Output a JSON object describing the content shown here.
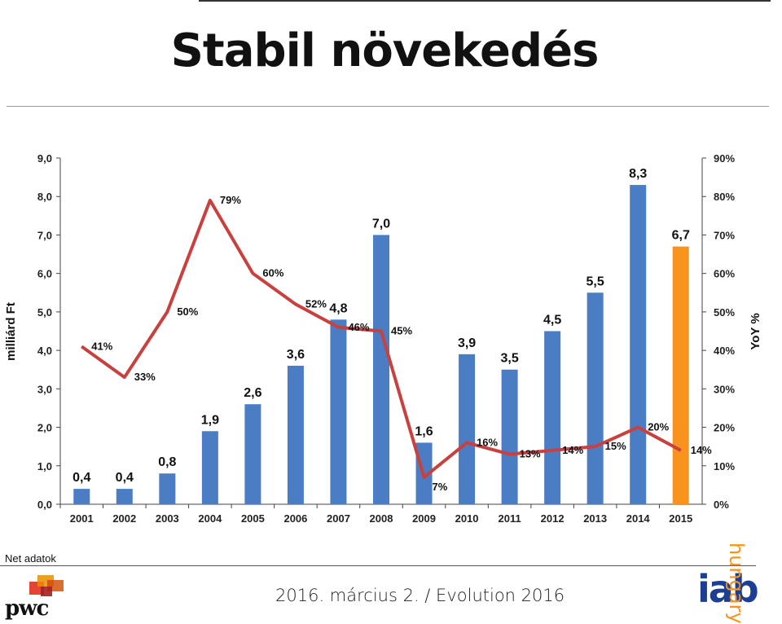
{
  "title": "Stabil növekedés",
  "note": "Net adatok",
  "footer": "2016. március 2. / Evolution 2016",
  "logos": {
    "pwc": "pwc",
    "iab": "iab",
    "iab_sub": "hungary"
  },
  "colors": {
    "bar": "#4a7dc4",
    "bar_highlight": "#f7931e",
    "line": "#c8413f",
    "iab_blue": "#1c3f94",
    "iab_orange": "#f7941d"
  },
  "chart_data": {
    "type": "bar",
    "categories": [
      "2001",
      "2002",
      "2003",
      "2004",
      "2005",
      "2006",
      "2007",
      "2008",
      "2009",
      "2010",
      "2011",
      "2012",
      "2013",
      "2014",
      "2015"
    ],
    "bar_values": [
      0.4,
      0.4,
      0.8,
      1.9,
      2.6,
      3.6,
      4.8,
      7.0,
      1.6,
      3.9,
      3.5,
      4.5,
      5.5,
      8.3,
      6.7
    ],
    "bar_labels": [
      "0,4",
      "0,4",
      "0,8",
      "1,9",
      "2,6",
      "3,6",
      "4,8",
      "7,0",
      "1,6",
      "3,9",
      "3,5",
      "4,5",
      "5,5",
      "8,3",
      "6,7"
    ],
    "highlight_category": "2015",
    "yoy_values": [
      41,
      33,
      50,
      79,
      60,
      52,
      46,
      45,
      7,
      16,
      13,
      14,
      15,
      20,
      14
    ],
    "yoy_labels": [
      "41%",
      "33%",
      "50%",
      "79%",
      "60%",
      "52%",
      "46%",
      "45%",
      "7%",
      "16%",
      "13%",
      "14%",
      "15%",
      "20%",
      "14%"
    ],
    "ylabel_left": "milliárd Ft",
    "ylabel_right": "YoY %",
    "ylim_left": [
      0,
      9
    ],
    "ylim_right": [
      0,
      90
    ],
    "yticks_left": [
      "0,0",
      "1,0",
      "2,0",
      "3,0",
      "4,0",
      "5,0",
      "6,0",
      "7,0",
      "8,0",
      "9,0"
    ],
    "yticks_right": [
      "0%",
      "10%",
      "20%",
      "30%",
      "40%",
      "50%",
      "60%",
      "70%",
      "80%",
      "90%"
    ],
    "grid": false
  }
}
